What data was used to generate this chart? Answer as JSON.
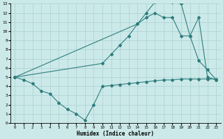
{
  "xlabel": "Humidex (Indice chaleur)",
  "background_color": "#cce9e9",
  "grid_color": "#afd4d4",
  "line_color": "#2e7d7d",
  "xlim": [
    -0.5,
    23.5
  ],
  "ylim": [
    0,
    13
  ],
  "xticks": [
    0,
    1,
    2,
    3,
    4,
    5,
    6,
    7,
    8,
    9,
    10,
    11,
    12,
    13,
    14,
    15,
    16,
    17,
    18,
    19,
    20,
    21,
    22,
    23
  ],
  "yticks": [
    0,
    1,
    2,
    3,
    4,
    5,
    6,
    7,
    8,
    9,
    10,
    11,
    12,
    13
  ],
  "line1_x": [
    0,
    1,
    2,
    3,
    4,
    5,
    6,
    7,
    8,
    9,
    10,
    11,
    12,
    13,
    14,
    15,
    16,
    17,
    18,
    19,
    20,
    21,
    22,
    23
  ],
  "line1_y": [
    5.0,
    4.7,
    4.3,
    3.5,
    3.2,
    2.2,
    1.5,
    1.0,
    0.3,
    2.0,
    4.0,
    4.1,
    4.2,
    4.3,
    4.4,
    4.5,
    4.6,
    4.7,
    4.7,
    4.8,
    4.8,
    4.8,
    4.8,
    4.8
  ],
  "line2_x": [
    0,
    14,
    15,
    16,
    17,
    18,
    19,
    20,
    21,
    22,
    23
  ],
  "line2_y": [
    5.0,
    10.8,
    12.0,
    13.2,
    13.3,
    13.2,
    13.0,
    9.5,
    11.5,
    5.0,
    4.7
  ],
  "line3_x": [
    0,
    10,
    11,
    12,
    13,
    14,
    15,
    16,
    17,
    18,
    19,
    20,
    21,
    22,
    23
  ],
  "line3_y": [
    5.0,
    6.5,
    7.5,
    8.5,
    9.5,
    10.8,
    11.5,
    12.0,
    11.5,
    11.5,
    9.5,
    9.5,
    6.8,
    5.8,
    4.7
  ]
}
